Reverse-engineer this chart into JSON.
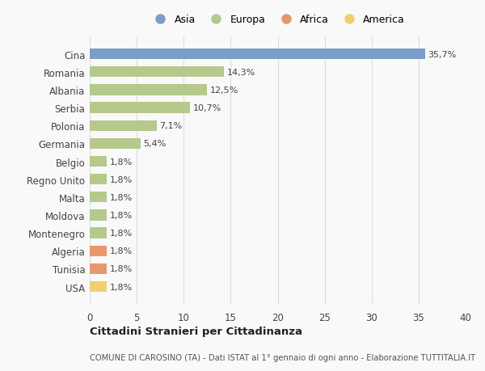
{
  "countries": [
    "Cina",
    "Romania",
    "Albania",
    "Serbia",
    "Polonia",
    "Germania",
    "Belgio",
    "Regno Unito",
    "Malta",
    "Moldova",
    "Montenegro",
    "Algeria",
    "Tunisia",
    "USA"
  ],
  "values": [
    35.7,
    14.3,
    12.5,
    10.7,
    7.1,
    5.4,
    1.8,
    1.8,
    1.8,
    1.8,
    1.8,
    1.8,
    1.8,
    1.8
  ],
  "labels": [
    "35,7%",
    "14,3%",
    "12,5%",
    "10,7%",
    "7,1%",
    "5,4%",
    "1,8%",
    "1,8%",
    "1,8%",
    "1,8%",
    "1,8%",
    "1,8%",
    "1,8%",
    "1,8%"
  ],
  "categories": [
    "Asia",
    "Europa",
    "Africa",
    "America"
  ],
  "continent": [
    "Asia",
    "Europa",
    "Europa",
    "Europa",
    "Europa",
    "Europa",
    "Europa",
    "Europa",
    "Europa",
    "Europa",
    "Europa",
    "Africa",
    "Africa",
    "America"
  ],
  "colors": {
    "Asia": "#7b9ec9",
    "Europa": "#b5c98a",
    "Africa": "#e8976a",
    "America": "#f0cf6e"
  },
  "xlim": [
    0,
    40
  ],
  "xticks": [
    0,
    5,
    10,
    15,
    20,
    25,
    30,
    35,
    40
  ],
  "title": "Cittadini Stranieri per Cittadinanza",
  "subtitle": "COMUNE DI CAROSINO (TA) - Dati ISTAT al 1° gennaio di ogni anno - Elaborazione TUTTITALIA.IT",
  "background_color": "#f9f9f9",
  "grid_color": "#dddddd",
  "bar_height": 0.6
}
